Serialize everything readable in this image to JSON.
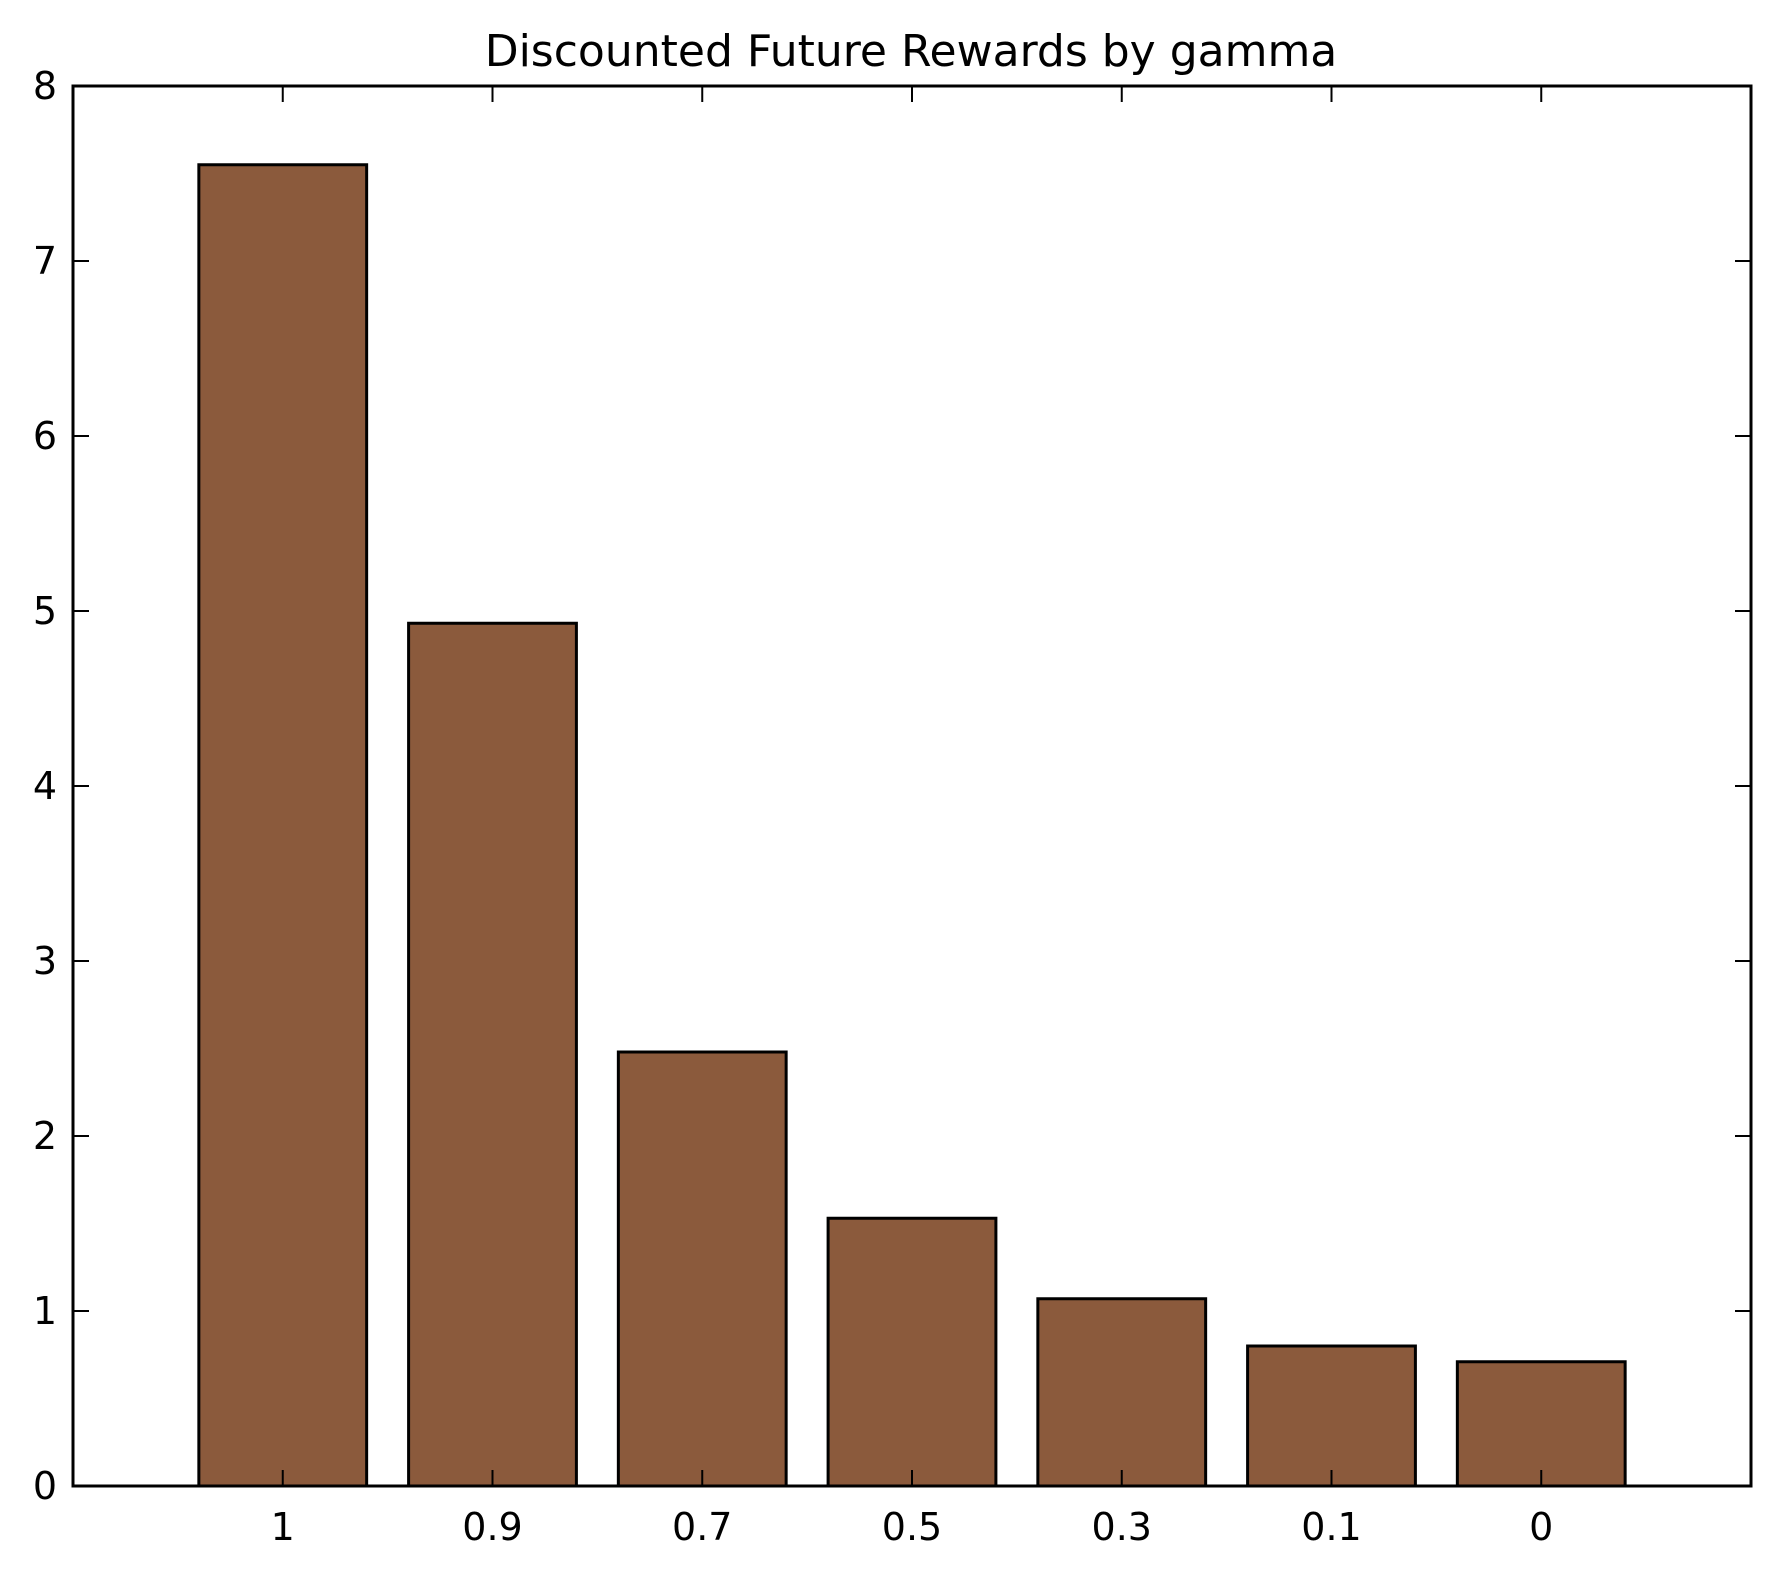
{
  "chart_data": {
    "type": "bar",
    "title": "Discounted Future Rewards by gamma",
    "xlabel": "",
    "ylabel": "",
    "categories": [
      "1",
      "0.9",
      "0.7",
      "0.5",
      "0.3",
      "0.1",
      "0"
    ],
    "values": [
      7.55,
      4.93,
      2.48,
      1.53,
      1.07,
      0.8,
      0.71
    ],
    "ylim": [
      0,
      8
    ],
    "yticks": [
      "0",
      "1",
      "2",
      "3",
      "4",
      "5",
      "6",
      "7",
      "8"
    ],
    "grid": false,
    "bar_color": "#8b5a3c",
    "edge_color": "#000000"
  }
}
